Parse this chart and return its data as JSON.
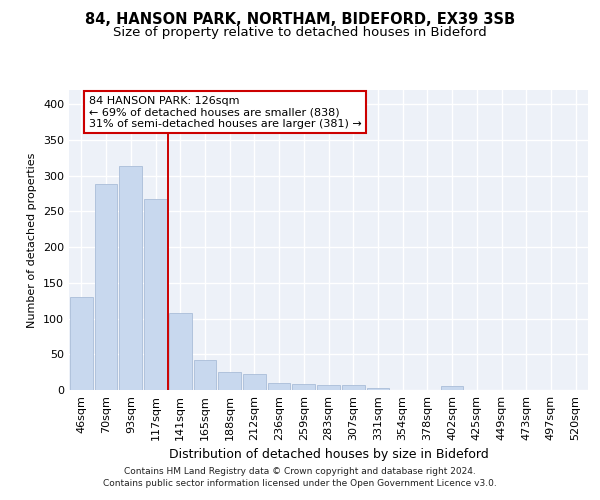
{
  "title1": "84, HANSON PARK, NORTHAM, BIDEFORD, EX39 3SB",
  "title2": "Size of property relative to detached houses in Bideford",
  "xlabel": "Distribution of detached houses by size in Bideford",
  "ylabel": "Number of detached properties",
  "categories": [
    "46sqm",
    "70sqm",
    "93sqm",
    "117sqm",
    "141sqm",
    "165sqm",
    "188sqm",
    "212sqm",
    "236sqm",
    "259sqm",
    "283sqm",
    "307sqm",
    "331sqm",
    "354sqm",
    "378sqm",
    "402sqm",
    "425sqm",
    "449sqm",
    "473sqm",
    "497sqm",
    "520sqm"
  ],
  "values": [
    130,
    288,
    313,
    268,
    108,
    42,
    25,
    22,
    10,
    9,
    7,
    7,
    3,
    0,
    0,
    5,
    0,
    0,
    0,
    0,
    0
  ],
  "bar_color": "#c8d8ee",
  "bar_edge_color": "#aabdd8",
  "vline_color": "#cc0000",
  "annotation_text": "84 HANSON PARK: 126sqm\n← 69% of detached houses are smaller (838)\n31% of semi-detached houses are larger (381) →",
  "annotation_box_color": "#ffffff",
  "annotation_box_edge": "#cc0000",
  "footer1": "Contains HM Land Registry data © Crown copyright and database right 2024.",
  "footer2": "Contains public sector information licensed under the Open Government Licence v3.0.",
  "ylim": [
    0,
    420
  ],
  "yticks": [
    0,
    50,
    100,
    150,
    200,
    250,
    300,
    350,
    400
  ],
  "bg_color": "#edf1f8",
  "grid_color": "#ffffff",
  "title1_fontsize": 10.5,
  "title2_fontsize": 9.5,
  "xlabel_fontsize": 9,
  "ylabel_fontsize": 8,
  "tick_fontsize": 8,
  "annot_fontsize": 8,
  "footer_fontsize": 6.5
}
